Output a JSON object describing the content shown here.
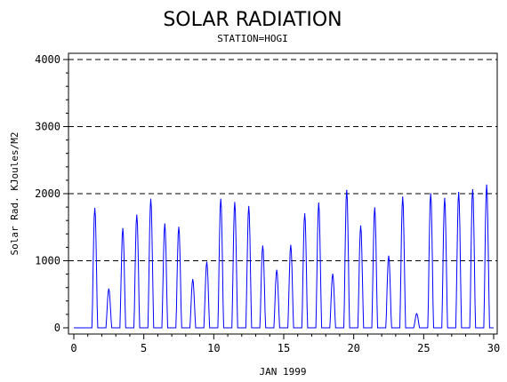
{
  "chart_data": {
    "type": "line",
    "title": "SOLAR RADIATION",
    "subtitle": "STATION=HOGI",
    "xlabel": "JAN 1999",
    "ylabel": "Solar Rad. KJoules/M2",
    "xlim": [
      0,
      30
    ],
    "ylim": [
      0,
      4000
    ],
    "x_ticks": [
      0,
      5,
      10,
      15,
      20,
      25,
      30
    ],
    "y_ticks": [
      0,
      1000,
      2000,
      3000,
      4000
    ],
    "grid": "horizontal dashed",
    "series": [
      {
        "color": "#0000ff",
        "daily_peaks": [
          {
            "day": 1,
            "peak": 1780
          },
          {
            "day": 2,
            "peak": 580
          },
          {
            "day": 3,
            "peak": 1480
          },
          {
            "day": 4,
            "peak": 1680
          },
          {
            "day": 5,
            "peak": 1920
          },
          {
            "day": 6,
            "peak": 1550
          },
          {
            "day": 7,
            "peak": 1500
          },
          {
            "day": 8,
            "peak": 720
          },
          {
            "day": 9,
            "peak": 980
          },
          {
            "day": 10,
            "peak": 1920
          },
          {
            "day": 11,
            "peak": 1870
          },
          {
            "day": 12,
            "peak": 1810
          },
          {
            "day": 13,
            "peak": 1220
          },
          {
            "day": 14,
            "peak": 860
          },
          {
            "day": 15,
            "peak": 1230
          },
          {
            "day": 16,
            "peak": 1700
          },
          {
            "day": 17,
            "peak": 1860
          },
          {
            "day": 18,
            "peak": 800
          },
          {
            "day": 19,
            "peak": 2050
          },
          {
            "day": 20,
            "peak": 1520
          },
          {
            "day": 21,
            "peak": 1790
          },
          {
            "day": 22,
            "peak": 1070
          },
          {
            "day": 23,
            "peak": 1950
          },
          {
            "day": 24,
            "peak": 210
          },
          {
            "day": 25,
            "peak": 2000
          },
          {
            "day": 26,
            "peak": 1930
          },
          {
            "day": 27,
            "peak": 2020
          },
          {
            "day": 28,
            "peak": 2060
          },
          {
            "day": 29,
            "peak": 2130
          }
        ]
      }
    ]
  },
  "colors": {
    "series": "#0000ff",
    "axis": "#000000",
    "grid": "#000000",
    "background": "#ffffff"
  }
}
